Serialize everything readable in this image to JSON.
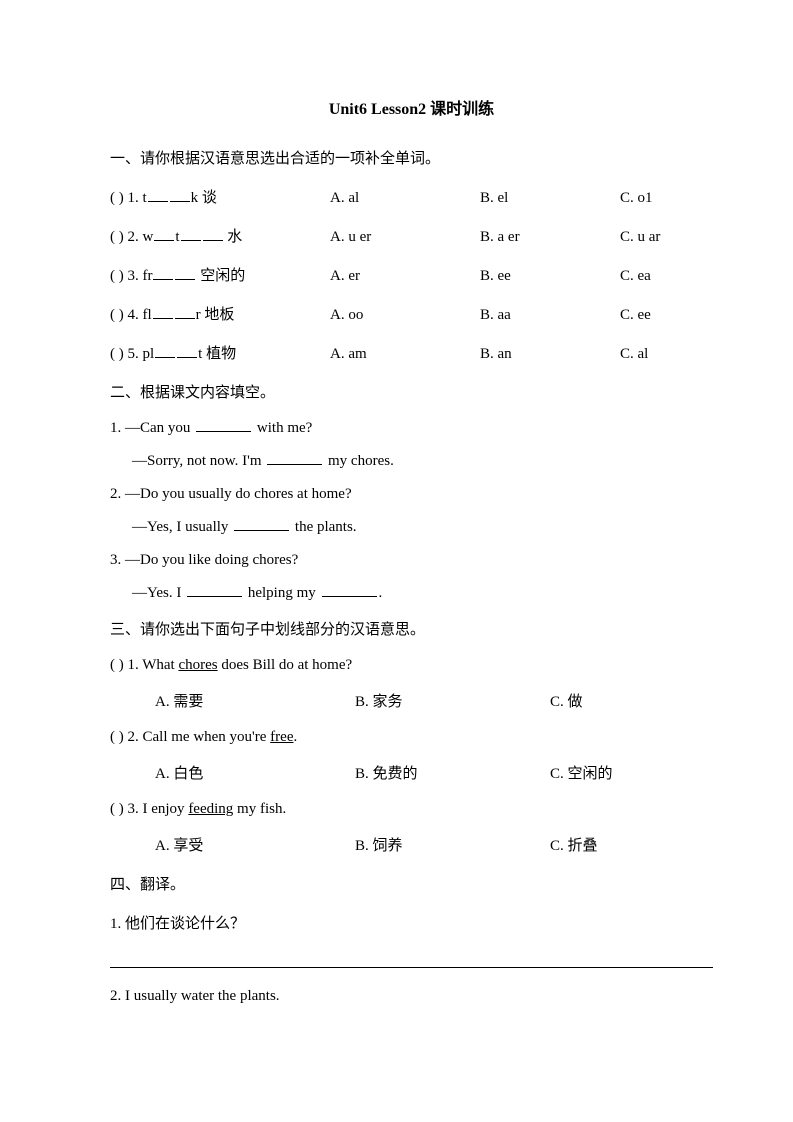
{
  "title": "Unit6 Lesson2 课时训练",
  "sec1": {
    "header": "一、请你根据汉语意思选出合适的一项补全单词。",
    "rows": [
      {
        "pre": "(    ) 1. t",
        "post": "k  谈",
        "A": "A. al",
        "B": "B. el",
        "C": "C. o1"
      },
      {
        "pre": "(    ) 2. w",
        "mid": "t",
        "post": "  水",
        "A": "A. u er",
        "B": "B. a er",
        "C": "C. u ar"
      },
      {
        "pre": "(    ) 3. fr",
        "post": "  空闲的",
        "A": "A. er",
        "B": "B. ee",
        "C": "C. ea"
      },
      {
        "pre": "(    ) 4. fl",
        "post": "r  地板",
        "A": "A. oo",
        "B": "B. aa",
        "C": "C. ee"
      },
      {
        "pre": "(    ) 5. pl",
        "post": "t  植物",
        "A": "A. am",
        "B": "B. an",
        "C": "C. al"
      }
    ]
  },
  "sec2": {
    "header": "二、根据课文内容填空。",
    "q1a": "1. —Can you ",
    "q1b": " with me?",
    "q1c": "—Sorry, not now. I'm ",
    "q1d": " my chores.",
    "q2a": "2. —Do you usually do chores at home?",
    "q2b": "—Yes, I usually ",
    "q2c": " the plants.",
    "q3a": "3. —Do you like doing chores?",
    "q3b": "—Yes. I ",
    "q3c": " helping my ",
    "q3d": "."
  },
  "sec3": {
    "header": "三、请你选出下面句子中划线部分的汉语意思。",
    "items": [
      {
        "pre": "(    ) 1. What ",
        "u": "chores",
        "post": " does Bill do at home?",
        "A": "A.  需要",
        "B": "B.  家务",
        "C": "C.  做"
      },
      {
        "pre": "(    ) 2. Call me when you're ",
        "u": "free",
        "post": ".",
        "A": "A.  白色",
        "B": "B.  免费的",
        "C": "C.  空闲的"
      },
      {
        "pre": "(    ) 3. I enjoy ",
        "u": "feeding",
        "post": " my fish.",
        "A": "A.  享受",
        "B": "B.  饲养",
        "C": "C.  折叠"
      }
    ]
  },
  "sec4": {
    "header": "四、翻译。",
    "q1": "1.  他们在谈论什么？",
    "q2": "2. I usually water the plants."
  }
}
